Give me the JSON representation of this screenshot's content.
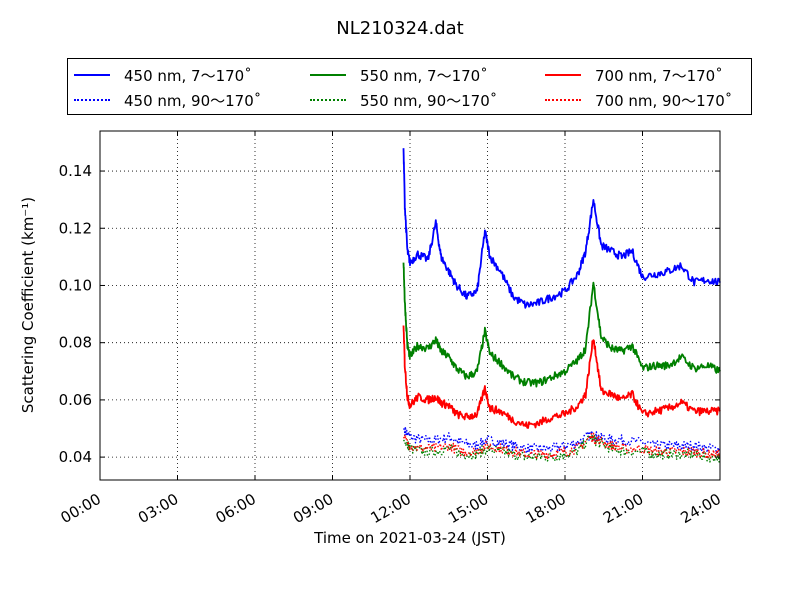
{
  "chart_data": {
    "type": "line",
    "title": "NL210324.dat",
    "xlabel": "Time on 2021-03-24 (JST)",
    "ylabel": "Scattering Coefficient (km⁻¹)",
    "x_ticks": [
      "00:00",
      "03:00",
      "06:00",
      "09:00",
      "12:00",
      "15:00",
      "18:00",
      "21:00",
      "24:00"
    ],
    "x_range_hours": [
      0,
      24
    ],
    "y_ticks": [
      "0.04",
      "0.06",
      "0.08",
      "0.10",
      "0.12",
      "0.14"
    ],
    "ylim": [
      0.032,
      0.154
    ],
    "grid": true,
    "legend_position": "top",
    "series": [
      {
        "name": "450 nm, 7～170˚",
        "color": "#0000ff",
        "style": "solid",
        "x": [
          11.75,
          11.8,
          11.9,
          12.0,
          12.3,
          12.7,
          13.0,
          13.2,
          13.5,
          13.8,
          14.2,
          14.6,
          14.9,
          15.1,
          15.5,
          16.0,
          16.5,
          17.0,
          17.5,
          18.0,
          18.5,
          18.8,
          19.1,
          19.4,
          19.8,
          20.2,
          20.6,
          21.0,
          21.5,
          22.0,
          22.5,
          23.0,
          23.5,
          24.0
        ],
        "y": [
          0.148,
          0.128,
          0.112,
          0.108,
          0.111,
          0.109,
          0.122,
          0.11,
          0.105,
          0.1,
          0.096,
          0.098,
          0.119,
          0.11,
          0.105,
          0.096,
          0.093,
          0.094,
          0.096,
          0.098,
          0.104,
          0.112,
          0.13,
          0.114,
          0.112,
          0.11,
          0.112,
          0.103,
          0.104,
          0.105,
          0.107,
          0.101,
          0.102,
          0.101
        ]
      },
      {
        "name": "550 nm, 7～170˚",
        "color": "#008000",
        "style": "solid",
        "x": [
          11.75,
          11.8,
          11.9,
          12.0,
          12.3,
          12.7,
          13.0,
          13.2,
          13.5,
          13.8,
          14.2,
          14.6,
          14.9,
          15.1,
          15.5,
          16.0,
          16.5,
          17.0,
          17.5,
          18.0,
          18.5,
          18.8,
          19.1,
          19.4,
          19.8,
          20.2,
          20.6,
          21.0,
          21.5,
          22.0,
          22.5,
          23.0,
          23.5,
          24.0
        ],
        "y": [
          0.108,
          0.094,
          0.079,
          0.075,
          0.079,
          0.078,
          0.081,
          0.077,
          0.075,
          0.071,
          0.068,
          0.07,
          0.084,
          0.076,
          0.073,
          0.068,
          0.066,
          0.066,
          0.068,
          0.07,
          0.074,
          0.078,
          0.101,
          0.082,
          0.078,
          0.077,
          0.079,
          0.071,
          0.072,
          0.072,
          0.075,
          0.071,
          0.072,
          0.07
        ]
      },
      {
        "name": "700 nm, 7～170˚",
        "color": "#ff0000",
        "style": "solid",
        "x": [
          11.75,
          11.8,
          11.9,
          12.0,
          12.3,
          12.7,
          13.0,
          13.2,
          13.5,
          13.8,
          14.2,
          14.6,
          14.9,
          15.1,
          15.5,
          16.0,
          16.5,
          17.0,
          17.5,
          18.0,
          18.5,
          18.8,
          19.1,
          19.4,
          19.8,
          20.2,
          20.6,
          21.0,
          21.5,
          22.0,
          22.5,
          23.0,
          23.5,
          24.0
        ],
        "y": [
          0.086,
          0.072,
          0.061,
          0.058,
          0.061,
          0.06,
          0.061,
          0.059,
          0.058,
          0.055,
          0.054,
          0.055,
          0.064,
          0.057,
          0.056,
          0.053,
          0.051,
          0.052,
          0.054,
          0.055,
          0.058,
          0.062,
          0.082,
          0.063,
          0.062,
          0.06,
          0.062,
          0.055,
          0.056,
          0.057,
          0.059,
          0.056,
          0.056,
          0.056
        ]
      },
      {
        "name": "450 nm, 90～170˚",
        "color": "#0000ff",
        "style": "dotted",
        "x": [
          11.75,
          12.0,
          12.5,
          13.0,
          13.5,
          14.0,
          14.5,
          15.0,
          15.5,
          16.0,
          16.5,
          17.0,
          17.5,
          18.0,
          18.5,
          19.0,
          19.3,
          19.8,
          20.3,
          21.0,
          21.5,
          22.0,
          22.5,
          23.0,
          23.5,
          24.0
        ],
        "y": [
          0.05,
          0.047,
          0.046,
          0.046,
          0.047,
          0.045,
          0.044,
          0.046,
          0.045,
          0.044,
          0.043,
          0.043,
          0.043,
          0.044,
          0.045,
          0.048,
          0.047,
          0.046,
          0.046,
          0.045,
          0.044,
          0.044,
          0.044,
          0.044,
          0.043,
          0.043
        ]
      },
      {
        "name": "550 nm, 90～170˚",
        "color": "#008000",
        "style": "dotted",
        "x": [
          11.75,
          12.0,
          12.5,
          13.0,
          13.5,
          14.0,
          14.5,
          15.0,
          15.5,
          16.0,
          16.5,
          17.0,
          17.5,
          18.0,
          18.5,
          19.0,
          19.3,
          19.8,
          20.3,
          21.0,
          21.5,
          22.0,
          22.5,
          23.0,
          23.5,
          24.0
        ],
        "y": [
          0.046,
          0.043,
          0.042,
          0.042,
          0.043,
          0.041,
          0.041,
          0.043,
          0.042,
          0.041,
          0.04,
          0.04,
          0.04,
          0.041,
          0.042,
          0.047,
          0.045,
          0.043,
          0.042,
          0.042,
          0.041,
          0.041,
          0.041,
          0.041,
          0.04,
          0.04
        ]
      },
      {
        "name": "700 nm, 90～170˚",
        "color": "#ff0000",
        "style": "dotted",
        "x": [
          11.75,
          12.0,
          12.5,
          13.0,
          13.5,
          14.0,
          14.5,
          15.0,
          15.5,
          16.0,
          16.5,
          17.0,
          17.5,
          18.0,
          18.5,
          19.0,
          19.3,
          19.8,
          20.3,
          21.0,
          21.5,
          22.0,
          22.5,
          23.0,
          23.5,
          24.0
        ],
        "y": [
          0.047,
          0.044,
          0.043,
          0.043,
          0.044,
          0.042,
          0.042,
          0.044,
          0.043,
          0.042,
          0.041,
          0.041,
          0.041,
          0.042,
          0.043,
          0.047,
          0.046,
          0.044,
          0.043,
          0.043,
          0.042,
          0.042,
          0.042,
          0.042,
          0.041,
          0.041
        ]
      }
    ]
  }
}
